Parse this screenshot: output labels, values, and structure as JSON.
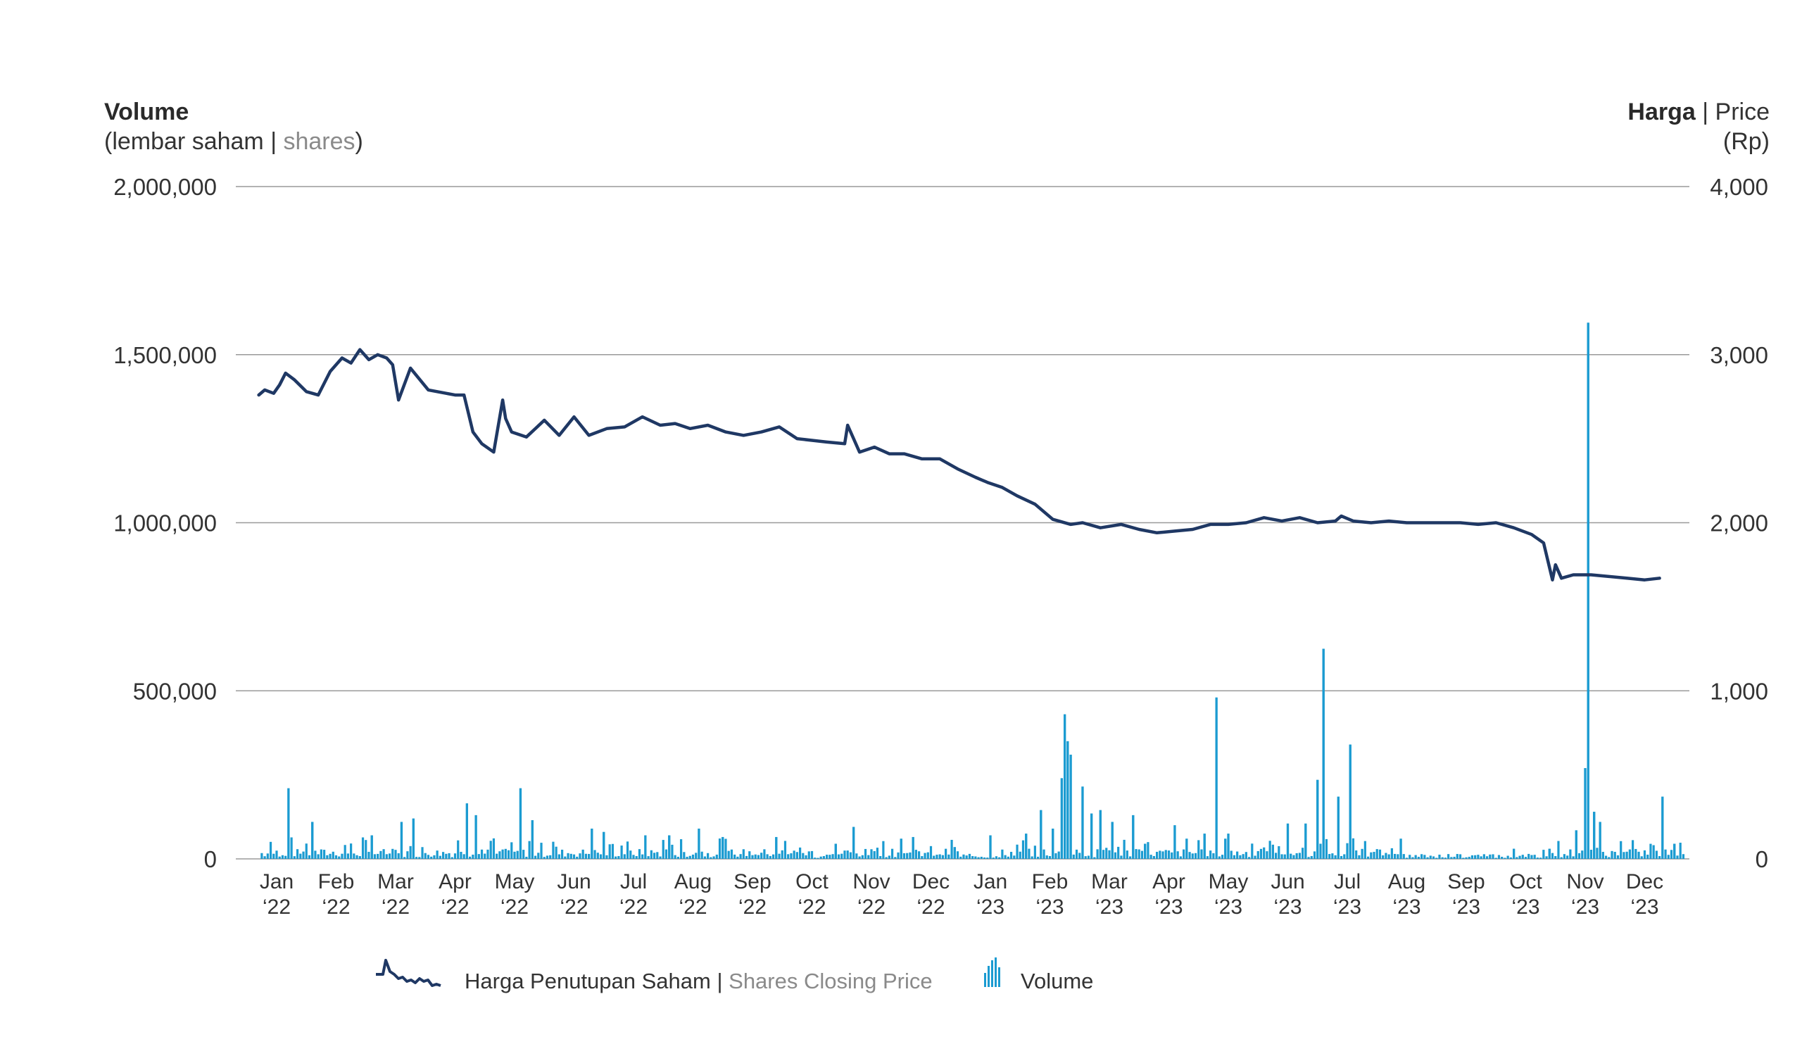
{
  "left_axis": {
    "title": "Volume",
    "unit_local": "(lembar saham",
    "sep": " | ",
    "unit_en": "shares",
    "close": ")"
  },
  "right_axis": {
    "title": "Harga",
    "sep": " | ",
    "title_en": "Price",
    "unit": "(Rp)"
  },
  "legend": {
    "price_label": "Harga Penutupan Saham",
    "sep": " | ",
    "price_label_en": "Shares Closing Price",
    "volume_label": "Volume"
  },
  "colors": {
    "price_line": "#1f3864",
    "volume_bar": "#1b9bd1",
    "grid": "#9a9a9a",
    "text": "#333333",
    "muted": "#8a8a8a"
  },
  "chart_data": {
    "type": "bar+line",
    "grid": true,
    "legend_position": "bottom",
    "volume_axis": {
      "ylim": [
        0,
        2000000
      ],
      "ticks": [
        0,
        500000,
        1000000,
        1500000,
        2000000
      ],
      "tick_labels": [
        "0",
        "500,000",
        "1,000,000",
        "1,500,000",
        "2,000,000"
      ]
    },
    "price_axis": {
      "ylim": [
        0,
        4000
      ],
      "ticks": [
        0,
        1000,
        2000,
        3000,
        4000
      ],
      "tick_labels": [
        "0",
        "1,000",
        "2,000",
        "3,000",
        "4,000"
      ]
    },
    "x_tick_labels": [
      [
        "Jan",
        "‘22"
      ],
      [
        "Feb",
        "‘22"
      ],
      [
        "Mar",
        "‘22"
      ],
      [
        "Apr",
        "‘22"
      ],
      [
        "May",
        "‘22"
      ],
      [
        "Jun",
        "‘22"
      ],
      [
        "Jul",
        "‘22"
      ],
      [
        "Aug",
        "‘22"
      ],
      [
        "Sep",
        "‘22"
      ],
      [
        "Oct",
        "‘22"
      ],
      [
        "Nov",
        "‘22"
      ],
      [
        "Dec",
        "‘22"
      ],
      [
        "Jan",
        "‘23"
      ],
      [
        "Feb",
        "‘23"
      ],
      [
        "Mar",
        "‘23"
      ],
      [
        "Apr",
        "‘23"
      ],
      [
        "May",
        "‘23"
      ],
      [
        "Jun",
        "‘23"
      ],
      [
        "Jul",
        "‘23"
      ],
      [
        "Aug",
        "‘23"
      ],
      [
        "Sep",
        "‘23"
      ],
      [
        "Oct",
        "‘23"
      ],
      [
        "Nov",
        "‘23"
      ],
      [
        "Dec",
        "‘23"
      ]
    ],
    "price_series": {
      "name": "Harga Penutupan Saham | Shares Closing Price",
      "x_months": [
        0.0,
        0.1,
        0.25,
        0.35,
        0.45,
        0.6,
        0.8,
        1.0,
        1.2,
        1.4,
        1.55,
        1.7,
        1.85,
        2.0,
        2.15,
        2.25,
        2.35,
        2.55,
        2.85,
        3.15,
        3.3,
        3.45,
        3.6,
        3.75,
        3.95,
        4.1,
        4.15,
        4.25,
        4.5,
        4.8,
        5.05,
        5.3,
        5.55,
        5.85,
        6.15,
        6.45,
        6.75,
        7.0,
        7.25,
        7.55,
        7.85,
        8.15,
        8.45,
        8.75,
        9.05,
        9.3,
        9.55,
        9.85,
        9.9,
        10.1,
        10.35,
        10.6,
        10.85,
        11.15,
        11.45,
        11.75,
        12.05,
        12.25,
        12.5,
        12.75,
        13.05,
        13.35,
        13.65,
        13.85,
        14.15,
        14.5,
        14.8,
        15.1,
        15.4,
        15.7,
        16.0,
        16.3,
        16.6,
        16.9,
        17.2,
        17.5,
        17.8,
        18.1,
        18.2,
        18.4,
        18.7,
        19.0,
        19.3,
        19.6,
        19.9,
        20.2,
        20.5,
        20.8,
        21.1,
        21.4,
        21.6,
        21.75,
        21.8,
        21.9,
        22.1,
        22.4,
        22.7,
        23.0,
        23.3,
        23.55
      ],
      "values": [
        2760,
        2790,
        2770,
        2820,
        2890,
        2850,
        2780,
        2760,
        2900,
        2980,
        2950,
        3030,
        2970,
        3000,
        2980,
        2940,
        2730,
        2920,
        2790,
        2770,
        2760,
        2760,
        2540,
        2470,
        2420,
        2730,
        2620,
        2540,
        2510,
        2610,
        2520,
        2630,
        2520,
        2560,
        2570,
        2630,
        2580,
        2590,
        2560,
        2580,
        2540,
        2520,
        2540,
        2570,
        2500,
        2490,
        2480,
        2470,
        2580,
        2420,
        2450,
        2410,
        2410,
        2380,
        2380,
        2320,
        2270,
        2240,
        2210,
        2160,
        2110,
        2020,
        1990,
        2000,
        1970,
        1990,
        1960,
        1940,
        1950,
        1960,
        1990,
        1990,
        2000,
        2030,
        2010,
        2030,
        2000,
        2010,
        2040,
        2010,
        2000,
        2010,
        2000,
        2000,
        2000,
        2000,
        1990,
        2000,
        1970,
        1930,
        1880,
        1660,
        1750,
        1670,
        1690,
        1690,
        1680,
        1670,
        1660,
        1670
      ]
    },
    "volume_series": {
      "name": "Volume",
      "peaks": [
        {
          "month": 0.2,
          "value": 210000
        },
        {
          "month": 0.6,
          "value": 110000
        },
        {
          "month": 1.6,
          "value": 70000
        },
        {
          "month": 2.1,
          "value": 110000
        },
        {
          "month": 2.3,
          "value": 120000
        },
        {
          "month": 3.2,
          "value": 165000
        },
        {
          "month": 3.35,
          "value": 130000
        },
        {
          "month": 4.1,
          "value": 210000
        },
        {
          "month": 4.3,
          "value": 115000
        },
        {
          "month": 5.3,
          "value": 90000
        },
        {
          "month": 5.5,
          "value": 80000
        },
        {
          "month": 6.2,
          "value": 70000
        },
        {
          "month": 6.6,
          "value": 70000
        },
        {
          "month": 7.1,
          "value": 90000
        },
        {
          "month": 7.5,
          "value": 65000
        },
        {
          "month": 8.4,
          "value": 65000
        },
        {
          "month": 9.4,
          "value": 45000
        },
        {
          "month": 9.7,
          "value": 95000
        },
        {
          "month": 10.5,
          "value": 60000
        },
        {
          "month": 10.7,
          "value": 65000
        },
        {
          "month": 11.4,
          "value": 35000
        },
        {
          "month": 12.0,
          "value": 70000
        },
        {
          "month": 12.6,
          "value": 75000
        },
        {
          "month": 12.85,
          "value": 145000
        },
        {
          "month": 13.05,
          "value": 90000
        },
        {
          "month": 13.2,
          "value": 240000
        },
        {
          "month": 13.25,
          "value": 430000
        },
        {
          "month": 13.3,
          "value": 350000
        },
        {
          "month": 13.35,
          "value": 310000
        },
        {
          "month": 13.55,
          "value": 215000
        },
        {
          "month": 13.7,
          "value": 135000
        },
        {
          "month": 13.85,
          "value": 145000
        },
        {
          "month": 14.05,
          "value": 110000
        },
        {
          "month": 14.4,
          "value": 130000
        },
        {
          "month": 14.6,
          "value": 45000
        },
        {
          "month": 15.1,
          "value": 100000
        },
        {
          "month": 15.3,
          "value": 60000
        },
        {
          "month": 15.6,
          "value": 75000
        },
        {
          "month": 15.8,
          "value": 480000
        },
        {
          "month": 15.95,
          "value": 60000
        },
        {
          "month": 16.0,
          "value": 75000
        },
        {
          "month": 17.0,
          "value": 105000
        },
        {
          "month": 17.3,
          "value": 105000
        },
        {
          "month": 17.5,
          "value": 235000
        },
        {
          "month": 17.6,
          "value": 625000
        },
        {
          "month": 17.85,
          "value": 185000
        },
        {
          "month": 18.05,
          "value": 340000
        },
        {
          "month": 18.9,
          "value": 60000
        },
        {
          "month": 20.8,
          "value": 30000
        },
        {
          "month": 21.4,
          "value": 30000
        },
        {
          "month": 21.85,
          "value": 85000
        },
        {
          "month": 22.0,
          "value": 270000
        },
        {
          "month": 22.05,
          "value": 1595000
        },
        {
          "month": 22.15,
          "value": 140000
        },
        {
          "month": 22.25,
          "value": 110000
        },
        {
          "month": 23.3,
          "value": 185000
        },
        {
          "month": 23.5,
          "value": 45000
        }
      ]
    }
  }
}
